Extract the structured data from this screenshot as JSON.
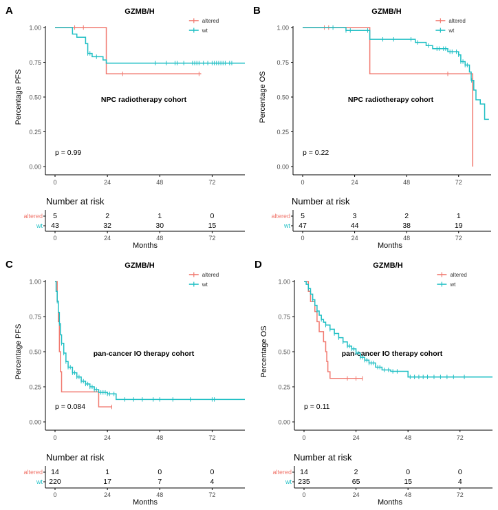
{
  "colors": {
    "altered": "#F17A70",
    "wt": "#1FBFC4",
    "axis": "#000000",
    "tick_text": "#4d4d4d"
  },
  "chart_data": [
    {
      "type": "line",
      "panel_label": "A",
      "title": "GZMB/H",
      "subtitle": "NPC radiotherapy cohort",
      "pvalue": "p = 0.99",
      "xlabel": "",
      "ylabel": "Percentage PFS",
      "xlim": [
        -5,
        87
      ],
      "ylim": [
        0,
        1
      ],
      "x_ticks": [
        0,
        24,
        48,
        72
      ],
      "y_ticks": [
        "0.00",
        "0.25",
        "0.50",
        "0.75",
        "1.00"
      ],
      "legend": [
        "altered",
        "wt"
      ],
      "series": [
        {
          "name": "altered",
          "color_key": "altered",
          "steps": [
            [
              0,
              1.0
            ],
            [
              23.5,
              0.667
            ],
            [
              67,
              0.667
            ]
          ],
          "censors": [
            9,
            13,
            31,
            66
          ]
        },
        {
          "name": "wt",
          "color_key": "wt",
          "steps": [
            [
              0,
              1.0
            ],
            [
              8,
              0.953
            ],
            [
              10,
              0.93
            ],
            [
              14,
              0.884
            ],
            [
              15,
              0.814
            ],
            [
              17,
              0.79
            ],
            [
              22,
              0.767
            ],
            [
              23.5,
              0.744
            ],
            [
              87,
              0.744
            ]
          ],
          "censors": [
            15,
            16,
            19,
            46,
            51,
            55,
            56,
            59,
            63,
            64,
            65,
            66,
            68,
            70,
            72,
            73,
            74,
            75,
            76,
            77,
            78,
            80,
            81
          ]
        }
      ],
      "risk_table": {
        "title": "Number at risk",
        "times": [
          0,
          24,
          48,
          72
        ],
        "rows": [
          {
            "name": "altered",
            "values": [
              "5",
              "2",
              "1",
              "0"
            ]
          },
          {
            "name": "wt",
            "values": [
              "43",
              "32",
              "30",
              "15"
            ]
          }
        ],
        "xlabel": "Months"
      }
    },
    {
      "type": "line",
      "panel_label": "B",
      "title": "GZMB/H",
      "subtitle": "NPC radiotherapy cohort",
      "pvalue": "p = 0.22",
      "xlabel": "",
      "ylabel": "Percentage OS",
      "xlim": [
        -5,
        87
      ],
      "ylim": [
        0,
        1
      ],
      "x_ticks": [
        0,
        24,
        48,
        72
      ],
      "y_ticks": [
        "0.00",
        "0.25",
        "0.50",
        "0.75",
        "1.00"
      ],
      "legend": [
        "altered",
        "wt"
      ],
      "series": [
        {
          "name": "altered",
          "color_key": "altered",
          "steps": [
            [
              0,
              1.0
            ],
            [
              31,
              0.667
            ],
            [
              78,
              0.667
            ],
            [
              78.5,
              0.0
            ]
          ],
          "censors": [
            10,
            12,
            67
          ]
        },
        {
          "name": "wt",
          "color_key": "wt",
          "steps": [
            [
              0,
              1.0
            ],
            [
              20,
              0.979
            ],
            [
              31,
              0.915
            ],
            [
              43,
              0.915
            ],
            [
              52,
              0.893
            ],
            [
              57,
              0.87
            ],
            [
              60,
              0.848
            ],
            [
              67,
              0.826
            ],
            [
              72,
              0.803
            ],
            [
              73,
              0.755
            ],
            [
              75,
              0.73
            ],
            [
              77,
              0.68
            ],
            [
              77.8,
              0.62
            ],
            [
              79,
              0.55
            ],
            [
              80,
              0.48
            ],
            [
              82,
              0.45
            ],
            [
              84,
              0.34
            ],
            [
              86,
              0.34
            ]
          ],
          "censors": [
            14,
            20,
            22,
            30,
            37,
            42,
            50,
            53,
            58,
            62,
            63,
            65,
            66,
            68,
            69,
            71,
            72,
            73,
            74,
            75,
            76,
            78
          ]
        }
      ],
      "risk_table": {
        "title": "Number at risk",
        "times": [
          0,
          24,
          48,
          72
        ],
        "rows": [
          {
            "name": "altered",
            "values": [
              "5",
              "3",
              "2",
              "1"
            ]
          },
          {
            "name": "wt",
            "values": [
              "47",
              "44",
              "38",
              "19"
            ]
          }
        ],
        "xlabel": "Months"
      }
    },
    {
      "type": "line",
      "panel_label": "C",
      "title": "GZMB/H",
      "subtitle": "pan-cancer IO therapy cohort",
      "pvalue": "p = 0.084",
      "xlabel": "",
      "ylabel": "Percentage PFS",
      "xlim": [
        -5,
        87
      ],
      "ylim": [
        0,
        1
      ],
      "x_ticks": [
        0,
        24,
        48,
        72
      ],
      "y_ticks": [
        "0.00",
        "0.25",
        "0.50",
        "0.75",
        "1.00"
      ],
      "legend": [
        "altered",
        "wt"
      ],
      "series": [
        {
          "name": "altered",
          "color_key": "altered",
          "steps": [
            [
              0,
              1.0
            ],
            [
              1,
              0.857
            ],
            [
              1.5,
              0.714
            ],
            [
              2,
              0.5
            ],
            [
              2.5,
              0.357
            ],
            [
              3,
              0.214
            ],
            [
              20,
              0.107
            ],
            [
              26,
              0.107
            ]
          ],
          "censors": [
            26
          ]
        },
        {
          "name": "wt",
          "color_key": "wt",
          "steps": [
            [
              0,
              1.0
            ],
            [
              0.5,
              0.93
            ],
            [
              1,
              0.86
            ],
            [
              1.5,
              0.78
            ],
            [
              2,
              0.7
            ],
            [
              2.5,
              0.62
            ],
            [
              3,
              0.56
            ],
            [
              4,
              0.49
            ],
            [
              5,
              0.43
            ],
            [
              6,
              0.39
            ],
            [
              8,
              0.35
            ],
            [
              10,
              0.32
            ],
            [
              12,
              0.29
            ],
            [
              14,
              0.27
            ],
            [
              16,
              0.25
            ],
            [
              18,
              0.23
            ],
            [
              20,
              0.21
            ],
            [
              24,
              0.2
            ],
            [
              28,
              0.16
            ],
            [
              87,
              0.16
            ]
          ],
          "censors": [
            1,
            2,
            3,
            4,
            5,
            6,
            7,
            8,
            9,
            10,
            11,
            12,
            13,
            14,
            15,
            16,
            17,
            18,
            19,
            21,
            22,
            23,
            24,
            25,
            27,
            32,
            36,
            40,
            45,
            48,
            54,
            62,
            72,
            73
          ]
        }
      ],
      "risk_table": {
        "title": "Number at risk",
        "times": [
          0,
          24,
          48,
          72
        ],
        "rows": [
          {
            "name": "altered",
            "values": [
              "14",
              "1",
              "0",
              "0"
            ]
          },
          {
            "name": "wt",
            "values": [
              "220",
              "17",
              "7",
              "4"
            ]
          }
        ],
        "xlabel": "Months"
      }
    },
    {
      "type": "line",
      "panel_label": "D",
      "title": "GZMB/H",
      "subtitle": "pan-cancer IO therapy cohort",
      "pvalue": "p = 0.11",
      "xlabel": "",
      "ylabel": "Percentage OS",
      "xlim": [
        -5,
        87
      ],
      "ylim": [
        0,
        1
      ],
      "x_ticks": [
        0,
        24,
        48,
        72
      ],
      "y_ticks": [
        "0.00",
        "0.25",
        "0.50",
        "0.75",
        "1.00"
      ],
      "legend": [
        "altered",
        "wt"
      ],
      "series": [
        {
          "name": "altered",
          "color_key": "altered",
          "steps": [
            [
              0,
              1.0
            ],
            [
              2,
              0.93
            ],
            [
              3,
              0.857
            ],
            [
              5,
              0.786
            ],
            [
              6,
              0.714
            ],
            [
              7,
              0.643
            ],
            [
              9,
              0.571
            ],
            [
              10,
              0.5
            ],
            [
              10.5,
              0.43
            ],
            [
              11,
              0.357
            ],
            [
              12,
              0.31
            ],
            [
              27,
              0.31
            ]
          ],
          "censors": [
            20,
            24,
            27
          ]
        },
        {
          "name": "wt",
          "color_key": "wt",
          "steps": [
            [
              0,
              1.0
            ],
            [
              1,
              0.98
            ],
            [
              2,
              0.95
            ],
            [
              3,
              0.91
            ],
            [
              4,
              0.87
            ],
            [
              5,
              0.83
            ],
            [
              6,
              0.79
            ],
            [
              7,
              0.76
            ],
            [
              8,
              0.73
            ],
            [
              9,
              0.71
            ],
            [
              10,
              0.69
            ],
            [
              12,
              0.66
            ],
            [
              14,
              0.63
            ],
            [
              16,
              0.6
            ],
            [
              18,
              0.57
            ],
            [
              20,
              0.54
            ],
            [
              22,
              0.52
            ],
            [
              24,
              0.49
            ],
            [
              26,
              0.46
            ],
            [
              28,
              0.44
            ],
            [
              30,
              0.42
            ],
            [
              33,
              0.39
            ],
            [
              36,
              0.37
            ],
            [
              40,
              0.36
            ],
            [
              46,
              0.36
            ],
            [
              48,
              0.32
            ],
            [
              87,
              0.32
            ]
          ],
          "censors": [
            2,
            4,
            6,
            8,
            10,
            12,
            14,
            16,
            18,
            20,
            21,
            22,
            23,
            24,
            25,
            26,
            27,
            28,
            29,
            30,
            31,
            32,
            34,
            35,
            37,
            39,
            41,
            43,
            49,
            51,
            53,
            55,
            57,
            60,
            63,
            66,
            69,
            74
          ]
        }
      ],
      "risk_table": {
        "title": "Number at risk",
        "times": [
          0,
          24,
          48,
          72
        ],
        "rows": [
          {
            "name": "altered",
            "values": [
              "14",
              "2",
              "0",
              "0"
            ]
          },
          {
            "name": "wt",
            "values": [
              "235",
              "65",
              "15",
              "4"
            ]
          }
        ],
        "xlabel": "Months"
      }
    }
  ]
}
